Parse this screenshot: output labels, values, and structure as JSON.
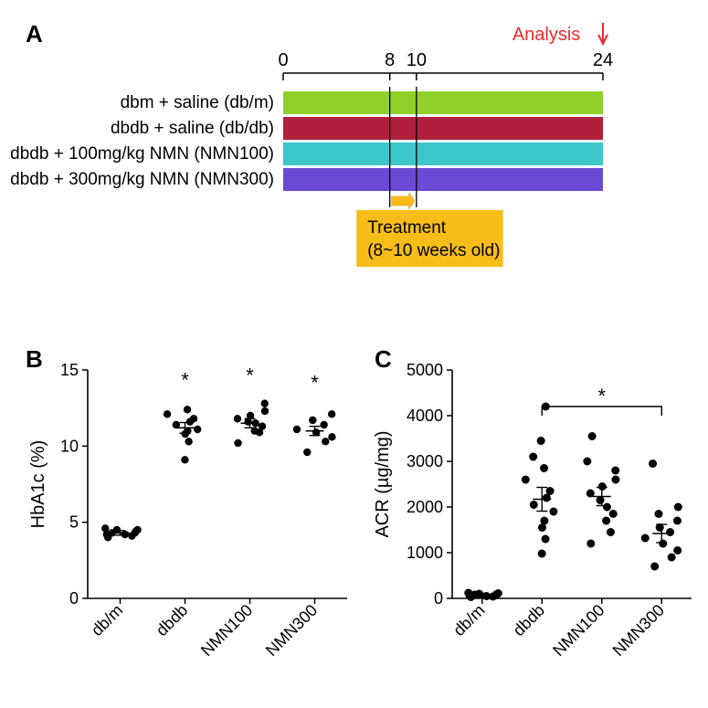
{
  "figure": {
    "panel_letters": {
      "A": "A",
      "B": "B",
      "C": "C"
    },
    "colors": {
      "text": "#000000",
      "analysis_red": "#ec2a2f",
      "treatment_bg": "#f9bd1a",
      "axis": "#000000",
      "scatter_fill": "#000000",
      "error_bar": "#000000"
    },
    "panelA": {
      "timeline": {
        "ticks": [
          0,
          8,
          10,
          24
        ],
        "label_fontsize": 20
      },
      "analysis_label": "Analysis",
      "rows": [
        {
          "label": "dbm + saline (db/m)",
          "color": "#8fd129"
        },
        {
          "label": "dbdb + saline (db/db)",
          "color": "#b01f3b"
        },
        {
          "label": "dbdb + 100mg/kg NMN (NMN100)",
          "color": "#3cc7ca"
        },
        {
          "label": "dbdb + 300mg/kg NMN (NMN300)",
          "color": "#6b4bd4"
        }
      ],
      "treatment_label_l1": "Treatment",
      "treatment_label_l2": "(8~10 weeks old)",
      "treatment_arrow_color": "#f9bd1a"
    },
    "panelB": {
      "ylabel": "HbA1c (%)",
      "ylim": [
        0,
        15
      ],
      "yticks": [
        0,
        5,
        10,
        15
      ],
      "xlabels": [
        "db/m",
        "dbdb",
        "NMN100",
        "NMN300"
      ],
      "label_fontsize": 20,
      "tick_fontsize": 18,
      "marker_radius": 4.2,
      "groups": [
        {
          "x": 0,
          "mean": 4.3,
          "sem": 0.15,
          "sig": false,
          "pts": [
            4.0,
            4.1,
            4.2,
            4.2,
            4.3,
            4.3,
            4.4,
            4.5,
            4.5,
            4.6
          ]
        },
        {
          "x": 1,
          "mean": 11.2,
          "sem": 0.35,
          "sig": true,
          "pts": [
            9.1,
            10.3,
            10.8,
            11.0,
            11.1,
            11.4,
            11.6,
            11.8,
            12.1,
            12.4
          ]
        },
        {
          "x": 2,
          "mean": 11.5,
          "sem": 0.3,
          "sig": true,
          "pts": [
            10.2,
            10.9,
            11.0,
            11.3,
            11.5,
            11.6,
            11.8,
            12.0,
            12.3,
            12.8
          ]
        },
        {
          "x": 3,
          "mean": 11.0,
          "sem": 0.3,
          "sig": true,
          "pts": [
            9.6,
            10.3,
            10.6,
            10.9,
            11.1,
            11.4,
            11.7,
            12.1
          ]
        }
      ]
    },
    "panelC": {
      "ylabel": "ACR (µg/mg)",
      "ylim": [
        0,
        5000
      ],
      "yticks": [
        0,
        1000,
        2000,
        3000,
        4000,
        5000
      ],
      "xlabels": [
        "db/m",
        "dbdb",
        "NMN100",
        "NMN300"
      ],
      "label_fontsize": 20,
      "tick_fontsize": 18,
      "marker_radius": 4.5,
      "sig_bracket": {
        "from": 1,
        "to": 3,
        "y": 4200,
        "label": "*"
      },
      "groups": [
        {
          "x": 0,
          "mean": 70,
          "sem": 40,
          "pts": [
            30,
            40,
            50,
            60,
            70,
            80,
            90,
            100,
            110,
            120
          ]
        },
        {
          "x": 1,
          "mean": 2170,
          "sem": 260,
          "pts": [
            980,
            1300,
            1550,
            1700,
            1900,
            2050,
            2200,
            2350,
            2600,
            2850,
            3100,
            3450,
            4200
          ]
        },
        {
          "x": 2,
          "mean": 2230,
          "sem": 200,
          "pts": [
            1200,
            1450,
            1700,
            1850,
            2000,
            2150,
            2300,
            2450,
            2600,
            2800,
            3000,
            3550
          ]
        },
        {
          "x": 3,
          "mean": 1420,
          "sem": 200,
          "pts": [
            700,
            900,
            1050,
            1200,
            1320,
            1450,
            1550,
            1700,
            1850,
            2000,
            2950
          ]
        }
      ]
    }
  }
}
